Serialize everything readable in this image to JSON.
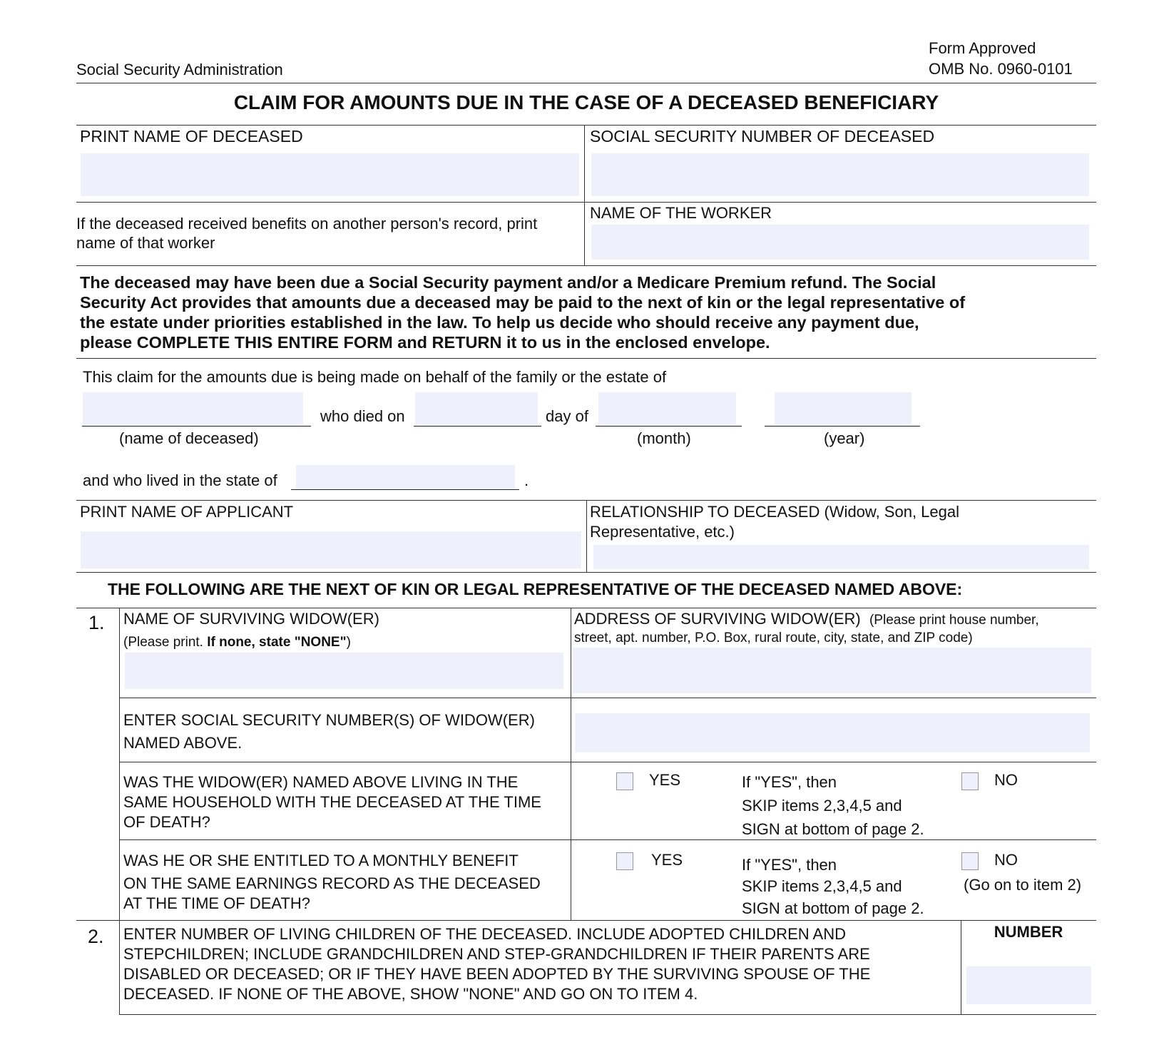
{
  "header": {
    "agency": "Social Security Administration",
    "approval_line1": "Form Approved",
    "approval_line2": "OMB No. 0960-0101",
    "title": "CLAIM FOR AMOUNTS DUE IN THE CASE OF A DECEASED BENEFICIARY"
  },
  "deceased": {
    "name_label": "PRINT NAME OF DECEASED",
    "name_value": "",
    "ssn_label": "SOCIAL SECURITY NUMBER OF DECEASED",
    "ssn_value": "",
    "other_record_line1": "If the deceased received benefits on another person's record, print",
    "other_record_line2": "name of that worker",
    "worker_label": "NAME OF THE WORKER",
    "worker_value": ""
  },
  "notice": {
    "lines": [
      "The deceased may have been due a Social Security payment and/or a Medicare Premium refund. The Social",
      "Security Act provides that amounts due a deceased may be paid to the next of kin or the legal representative of",
      "the estate under priorities established in the law. To help us decide who should receive any payment due,",
      "please COMPLETE THIS ENTIRE FORM and RETURN it to us in the enclosed envelope."
    ]
  },
  "claim": {
    "intro": "This claim for the amounts due is being made on behalf of the family or the estate of",
    "who_died_on": "who died on",
    "day_of": "day of",
    "name_caption": "(name of deceased)",
    "month_caption": "(month)",
    "year_caption": "(year)",
    "state_text": "and who lived in the state of",
    "period": ".",
    "name_value": "",
    "day_value": "",
    "month_value": "",
    "year_value": "",
    "state_value": ""
  },
  "applicant": {
    "name_label": "PRINT NAME OF APPLICANT",
    "name_value": "",
    "relationship_line1": "RELATIONSHIP TO DECEASED (Widow, Son, Legal",
    "relationship_line2": "Representative, etc.)",
    "relationship_value": ""
  },
  "kin_heading": "THE FOLLOWING ARE THE NEXT OF KIN OR LEGAL REPRESENTATIVE OF THE  DECEASED  NAMED ABOVE:",
  "item1": {
    "number": "1.",
    "name_label": "NAME OF SURVIVING WIDOW(ER)",
    "name_hint_prefix": "(Please print.  ",
    "name_hint_bold": "If none, state \"NONE\"",
    "name_hint_suffix": ")",
    "name_value": "",
    "address_label": "ADDRESS OF SURVIVING WIDOW(ER)",
    "address_hint1": "(Please print house number,",
    "address_hint2": "street, apt. number, P.O. Box, rural route, city, state, and ZIP code)",
    "address_value": "",
    "ssn_line1": "ENTER SOCIAL SECURITY NUMBER(S) OF WIDOW(ER)",
    "ssn_line2": "NAMED ABOVE.",
    "ssn_value": "",
    "household_q": [
      "WAS THE WIDOW(ER) NAMED ABOVE LIVING IN THE",
      "SAME HOUSEHOLD WITH THE DECEASED AT THE TIME",
      "OF DEATH?"
    ],
    "household_yes": "YES",
    "household_yes_note": [
      "If \"YES\",  then",
      "SKIP items  2,3,4,5 and",
      "SIGN at bottom of page 2."
    ],
    "household_no": "NO",
    "household_yes_checked": false,
    "household_no_checked": false,
    "benefit_q": [
      "WAS HE OR SHE ENTITLED TO A MONTHLY BENEFIT",
      "ON THE SAME EARNINGS RECORD AS THE DECEASED",
      "AT THE TIME OF DEATH?"
    ],
    "benefit_yes": "YES",
    "benefit_yes_note": [
      "If \"YES\", then",
      "SKIP items  2,3,4,5 and",
      "SIGN at bottom of page 2."
    ],
    "benefit_no": "NO",
    "benefit_no_note": "(Go on to item 2)",
    "benefit_yes_checked": false,
    "benefit_no_checked": false
  },
  "item2": {
    "number": "2.",
    "lines": [
      "ENTER NUMBER OF LIVING CHILDREN OF THE DECEASED. INCLUDE ADOPTED CHILDREN AND",
      "STEPCHILDREN; INCLUDE GRANDCHILDREN AND STEP-GRANDCHILDREN IF THEIR PARENTS ARE",
      "DISABLED OR DECEASED; OR IF THEY HAVE BEEN ADOPTED BY THE SURVIVING SPOUSE OF THE",
      "DECEASED.  IF NONE OF THE ABOVE, SHOW \"NONE\" AND GO ON TO ITEM 4."
    ],
    "number_label": "NUMBER",
    "number_value": ""
  },
  "colors": {
    "field_fill": "#eef1fb",
    "rule": "#333333"
  }
}
